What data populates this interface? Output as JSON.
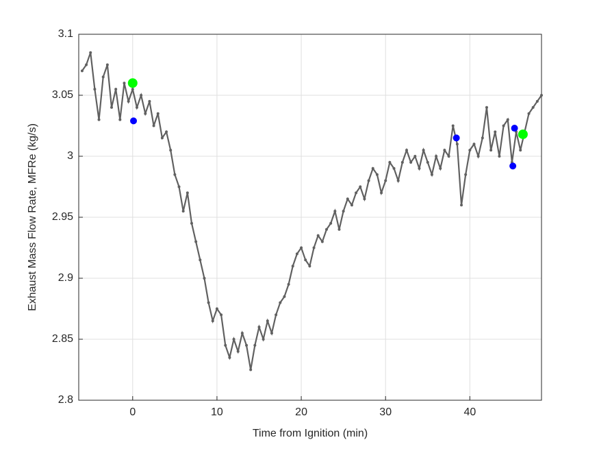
{
  "chart_data": {
    "type": "line",
    "xlabel": "Time from Ignition (min)",
    "ylabel": "Exhaust Mass Flow Rate, MFRe (kg/s)",
    "xlim": [
      -6.4,
      48.5
    ],
    "ylim": [
      2.8,
      3.1
    ],
    "xticks": [
      0,
      10,
      20,
      30,
      40
    ],
    "yticks": [
      2.8,
      2.85,
      2.9,
      2.95,
      3,
      3.05,
      3.1
    ],
    "grid": true,
    "series": [
      {
        "color": "#606060",
        "style": "line-dots",
        "x": [
          -6,
          -5.5,
          -5,
          -4.5,
          -4,
          -3.5,
          -3,
          -2.5,
          -2,
          -1.5,
          -1,
          -0.5,
          0,
          0.5,
          1,
          1.5,
          2,
          2.5,
          3,
          3.5,
          4,
          4.5,
          5,
          5.5,
          6,
          6.5,
          7,
          7.5,
          8,
          8.5,
          9,
          9.5,
          10,
          10.5,
          11,
          11.5,
          12,
          12.5,
          13,
          13.5,
          14,
          14.5,
          15,
          15.5,
          16,
          16.5,
          17,
          17.5,
          18,
          18.5,
          19,
          19.5,
          20,
          20.5,
          21,
          21.5,
          22,
          22.5,
          23,
          23.5,
          24,
          24.5,
          25,
          25.5,
          26,
          26.5,
          27,
          27.5,
          28,
          28.5,
          29,
          29.5,
          30,
          30.5,
          31,
          31.5,
          32,
          32.5,
          33,
          33.5,
          34,
          34.5,
          35,
          35.5,
          36,
          36.5,
          37,
          37.5,
          38,
          38.5,
          39,
          39.5,
          40,
          40.5,
          41,
          41.5,
          42,
          42.5,
          43,
          43.5,
          44,
          44.5,
          45,
          45.5,
          46,
          46.5,
          47,
          47.5,
          48,
          48.5
        ],
        "values": [
          3.07,
          3.075,
          3.085,
          3.055,
          3.03,
          3.065,
          3.075,
          3.04,
          3.055,
          3.03,
          3.06,
          3.045,
          3.055,
          3.04,
          3.05,
          3.035,
          3.045,
          3.025,
          3.035,
          3.015,
          3.02,
          3.005,
          2.985,
          2.975,
          2.955,
          2.97,
          2.945,
          2.93,
          2.915,
          2.9,
          2.88,
          2.865,
          2.875,
          2.87,
          2.845,
          2.835,
          2.85,
          2.84,
          2.855,
          2.845,
          2.825,
          2.845,
          2.86,
          2.85,
          2.865,
          2.855,
          2.87,
          2.88,
          2.885,
          2.895,
          2.91,
          2.92,
          2.925,
          2.915,
          2.91,
          2.925,
          2.935,
          2.93,
          2.94,
          2.945,
          2.955,
          2.94,
          2.955,
          2.965,
          2.96,
          2.97,
          2.975,
          2.965,
          2.98,
          2.99,
          2.985,
          2.97,
          2.98,
          2.995,
          2.99,
          2.98,
          2.995,
          3.005,
          2.995,
          3.0,
          2.99,
          3.005,
          2.995,
          2.985,
          3.0,
          2.99,
          3.005,
          3.0,
          3.025,
          3.01,
          2.96,
          2.985,
          3.005,
          3.01,
          3.0,
          3.015,
          3.04,
          3.005,
          3.02,
          3.0,
          3.025,
          3.03,
          2.995,
          3.02,
          3.005,
          3.02,
          3.035,
          3.04,
          3.045,
          3.05
        ]
      },
      {
        "color": "#0000ff",
        "style": "markers",
        "size": 5,
        "x": [
          0.1,
          38.4,
          45.3,
          45.1
        ],
        "values": [
          3.029,
          3.015,
          3.023,
          2.992
        ]
      },
      {
        "color": "#00ff00",
        "style": "markers",
        "size": 7,
        "x": [
          0,
          46.3
        ],
        "values": [
          3.06,
          3.018
        ]
      }
    ]
  }
}
